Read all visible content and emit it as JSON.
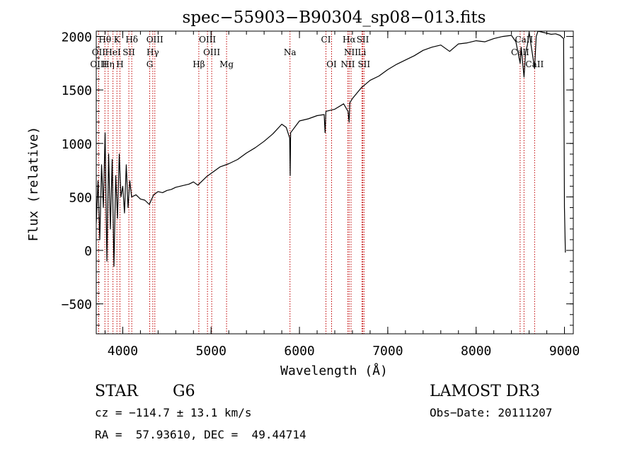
{
  "chart_data": {
    "type": "line",
    "title": "spec−55903−B90304_sp08−013.fits",
    "xlabel": "Wavelength (Å)",
    "ylabel": "Flux (relative)",
    "xlim": [
      3700,
      9100
    ],
    "ylim": [
      -780,
      2050
    ],
    "x_ticks": [
      4000,
      5000,
      6000,
      7000,
      8000,
      9000
    ],
    "x_tick_labels": [
      "4000",
      "5000",
      "6000",
      "7000",
      "8000",
      "9000"
    ],
    "y_ticks": [
      -500,
      0,
      500,
      1000,
      1500,
      2000
    ],
    "y_tick_labels": [
      "−500",
      "0",
      "500",
      "1000",
      "1500",
      "2000"
    ],
    "x_minor_step": 200,
    "y_minor_step": 100,
    "series": [
      {
        "name": "flux",
        "x": [
          3700,
          3720,
          3740,
          3760,
          3780,
          3800,
          3820,
          3840,
          3860,
          3880,
          3900,
          3920,
          3940,
          3960,
          3980,
          4000,
          4020,
          4040,
          4060,
          4080,
          4100,
          4150,
          4200,
          4250,
          4300,
          4350,
          4400,
          4450,
          4500,
          4550,
          4600,
          4650,
          4700,
          4750,
          4800,
          4850,
          4900,
          4950,
          5000,
          5100,
          5200,
          5300,
          5400,
          5500,
          5600,
          5700,
          5800,
          5850,
          5890,
          5895,
          5900,
          6000,
          6100,
          6200,
          6280,
          6290,
          6300,
          6400,
          6500,
          6550,
          6563,
          6570,
          6600,
          6700,
          6800,
          6900,
          7000,
          7100,
          7200,
          7300,
          7400,
          7500,
          7600,
          7700,
          7800,
          7900,
          8000,
          8100,
          8200,
          8300,
          8400,
          8450,
          8498,
          8510,
          8542,
          8560,
          8580,
          8600,
          8662,
          8680,
          8700,
          8750,
          8800,
          8850,
          8900,
          8950,
          8990,
          9000,
          9010
        ],
        "y": [
          250,
          650,
          100,
          800,
          400,
          1100,
          -100,
          900,
          200,
          850,
          -150,
          700,
          300,
          900,
          500,
          600,
          350,
          800,
          400,
          650,
          500,
          520,
          480,
          470,
          430,
          520,
          550,
          540,
          560,
          570,
          590,
          600,
          610,
          620,
          640,
          610,
          650,
          690,
          720,
          780,
          810,
          850,
          910,
          960,
          1020,
          1090,
          1180,
          1150,
          1050,
          700,
          1100,
          1210,
          1230,
          1260,
          1270,
          1100,
          1300,
          1320,
          1370,
          1300,
          1200,
          1380,
          1420,
          1520,
          1590,
          1630,
          1690,
          1740,
          1780,
          1820,
          1870,
          1900,
          1920,
          1860,
          1930,
          1940,
          1960,
          1950,
          1980,
          2000,
          2010,
          1950,
          1750,
          1900,
          1620,
          1850,
          1920,
          2040,
          1700,
          2000,
          2050,
          2040,
          2030,
          2020,
          2025,
          2010,
          1980,
          400,
          -20
        ]
      }
    ],
    "lines": [
      {
        "name": "Hθ",
        "x": 3798,
        "row": 1
      },
      {
        "name": "K",
        "x": 3934,
        "row": 1
      },
      {
        "name": "Hδ",
        "x": 4102,
        "row": 1
      },
      {
        "name": "OIII",
        "x": 4363,
        "row": 1
      },
      {
        "name": "OIII",
        "x": 4959,
        "row": 1
      },
      {
        "name": "CI",
        "x": 6300,
        "row": 1
      },
      {
        "name": "Hα",
        "x": 6563,
        "row": 1
      },
      {
        "name": "SII",
        "x": 6717,
        "row": 1
      },
      {
        "name": "CaII",
        "x": 8542,
        "row": 1
      },
      {
        "name": "OII",
        "x": 3727,
        "row": 2
      },
      {
        "name": "HeI",
        "x": 3889,
        "row": 2
      },
      {
        "name": "SII",
        "x": 4069,
        "row": 2
      },
      {
        "name": "Hγ",
        "x": 4340,
        "row": 2
      },
      {
        "name": "OIII",
        "x": 5007,
        "row": 2
      },
      {
        "name": "Na",
        "x": 5893,
        "row": 2
      },
      {
        "name": "NII",
        "x": 6584,
        "row": 2
      },
      {
        "name": "Li",
        "x": 6708,
        "row": 2
      },
      {
        "name": "CaII",
        "x": 8498,
        "row": 2
      },
      {
        "name": "OIII",
        "x": 3727,
        "row": 3
      },
      {
        "name": "Hη",
        "x": 3835,
        "row": 3
      },
      {
        "name": "H",
        "x": 3968,
        "row": 3
      },
      {
        "name": "G",
        "x": 4305,
        "row": 3
      },
      {
        "name": "Hβ",
        "x": 4861,
        "row": 3
      },
      {
        "name": "Mg",
        "x": 5175,
        "row": 3
      },
      {
        "name": "OI",
        "x": 6364,
        "row": 3
      },
      {
        "name": "NII",
        "x": 6548,
        "row": 3
      },
      {
        "name": "SII",
        "x": 6731,
        "row": 3
      },
      {
        "name": "CaII",
        "x": 8662,
        "row": 3
      }
    ]
  },
  "info": {
    "object_class": "STAR",
    "subclass": "G6",
    "survey": "LAMOST DR3",
    "cz": "cz = −114.7 ± 13.1 km/s",
    "obs_date": "Obs−Date: 20111207",
    "coords": "RA =  57.93610, DEC =  49.44714"
  },
  "colors": {
    "spectrum": "#000000",
    "line_marker": "#c00000",
    "axes": "#000000"
  }
}
